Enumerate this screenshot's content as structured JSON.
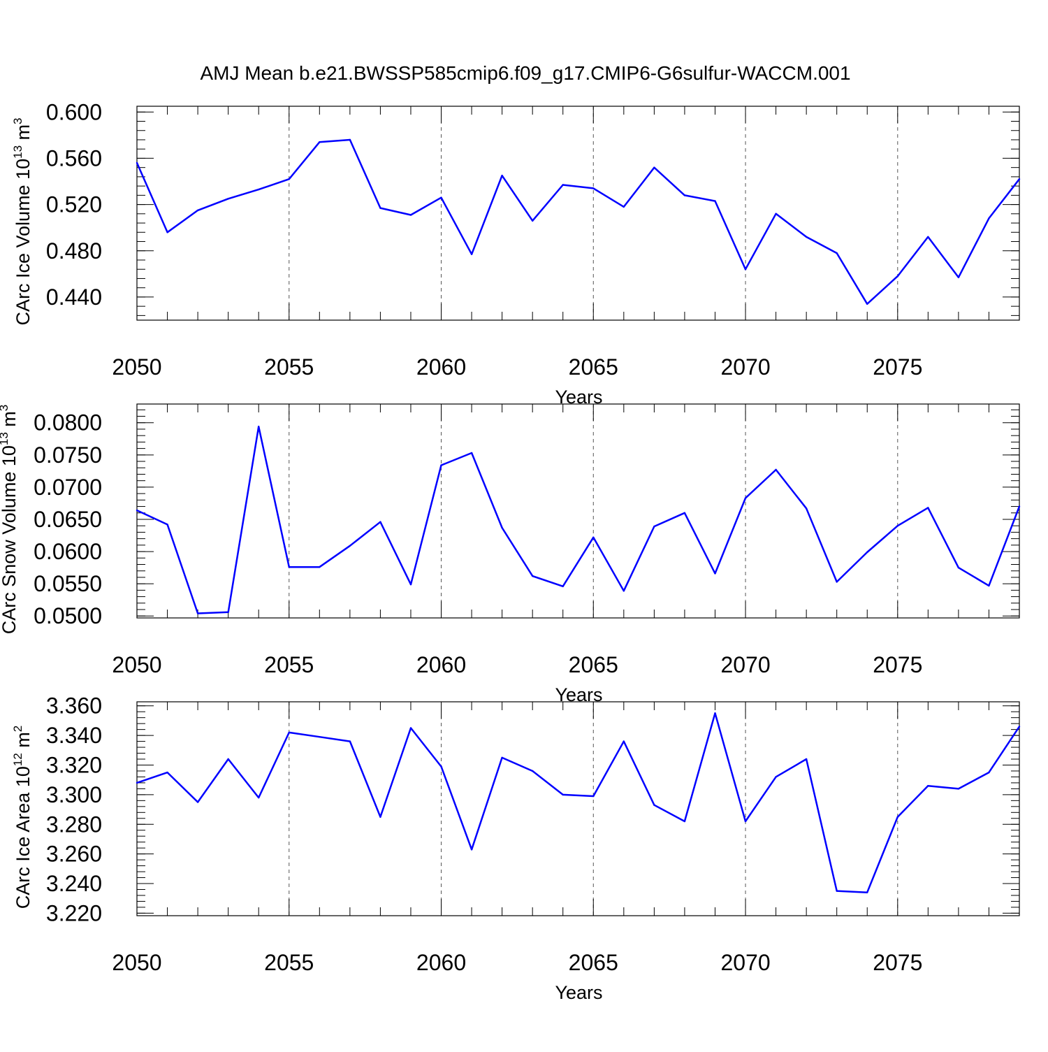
{
  "title": "AMJ Mean b.e21.BWSSP585cmip6.f09_g17.CMIP6-G6sulfur-WACCM.001",
  "colors": {
    "line": "#0000ff",
    "axis": "#000000",
    "grid": "#555555"
  },
  "chart_data": [
    {
      "type": "line",
      "ylabel_main": "CArc Ice Volume 10",
      "ylabel_sup": "13",
      "ylabel_unit": " m",
      "ylabel_unit_sup": "3",
      "xlabel": "Years",
      "xlim": [
        2050,
        2079
      ],
      "ylim": [
        0.42,
        0.605
      ],
      "yticks": [
        0.44,
        0.48,
        0.52,
        0.56,
        0.6
      ],
      "ytick_labels": [
        "0.440",
        "0.480",
        "0.520",
        "0.560",
        "0.600"
      ],
      "ystep_minor": 0.008,
      "xticks": [
        2050,
        2055,
        2060,
        2065,
        2070,
        2075
      ],
      "xtick_labels": [
        "2050",
        "2055",
        "2060",
        "2065",
        "2070",
        "2075"
      ],
      "vertical_grid": [
        2055,
        2060,
        2065,
        2070,
        2075
      ],
      "x": [
        2050,
        2051,
        2052,
        2053,
        2054,
        2055,
        2056,
        2057,
        2058,
        2059,
        2060,
        2061,
        2062,
        2063,
        2064,
        2065,
        2066,
        2067,
        2068,
        2069,
        2070,
        2071,
        2072,
        2073,
        2074,
        2075,
        2076,
        2077,
        2078,
        2079
      ],
      "y": [
        0.556,
        0.496,
        0.515,
        0.525,
        0.533,
        0.542,
        0.574,
        0.576,
        0.517,
        0.511,
        0.526,
        0.477,
        0.545,
        0.506,
        0.537,
        0.534,
        0.518,
        0.552,
        0.528,
        0.523,
        0.464,
        0.512,
        0.492,
        0.478,
        0.434,
        0.458,
        0.492,
        0.457,
        0.508,
        0.542
      ]
    },
    {
      "type": "line",
      "ylabel_main": "CArc Snow Volume 10",
      "ylabel_sup": "13",
      "ylabel_unit": " m",
      "ylabel_unit_sup": "3",
      "xlabel": "Years",
      "xlim": [
        2050,
        2079
      ],
      "ylim": [
        0.0497,
        0.0829
      ],
      "yticks": [
        0.05,
        0.055,
        0.06,
        0.065,
        0.07,
        0.075,
        0.08
      ],
      "ytick_labels": [
        "0.0500",
        "0.0550",
        "0.0600",
        "0.0650",
        "0.0700",
        "0.0750",
        "0.0800"
      ],
      "ystep_minor": 0.001,
      "xticks": [
        2050,
        2055,
        2060,
        2065,
        2070,
        2075
      ],
      "xtick_labels": [
        "2050",
        "2055",
        "2060",
        "2065",
        "2070",
        "2075"
      ],
      "vertical_grid": [
        2055,
        2060,
        2065,
        2070,
        2075
      ],
      "x": [
        2050,
        2051,
        2052,
        2053,
        2054,
        2055,
        2056,
        2057,
        2058,
        2059,
        2060,
        2061,
        2062,
        2063,
        2064,
        2065,
        2066,
        2067,
        2068,
        2069,
        2070,
        2071,
        2072,
        2073,
        2074,
        2075,
        2076,
        2077,
        2078,
        2079
      ],
      "y": [
        0.0664,
        0.0642,
        0.0504,
        0.0506,
        0.0794,
        0.0576,
        0.0576,
        0.0609,
        0.0646,
        0.0549,
        0.0734,
        0.0753,
        0.0637,
        0.0562,
        0.0546,
        0.0622,
        0.0539,
        0.0639,
        0.066,
        0.0566,
        0.0683,
        0.0727,
        0.0667,
        0.0553,
        0.0599,
        0.064,
        0.0668,
        0.0575,
        0.0547,
        0.067
      ]
    },
    {
      "type": "line",
      "ylabel_main": "CArc Ice Area 10",
      "ylabel_sup": "12",
      "ylabel_unit": " m",
      "ylabel_unit_sup": "2",
      "xlabel": "Years",
      "xlim": [
        2050,
        2079
      ],
      "ylim": [
        3.2183,
        3.3627
      ],
      "yticks": [
        3.22,
        3.24,
        3.26,
        3.28,
        3.3,
        3.32,
        3.34,
        3.36
      ],
      "ytick_labels": [
        "3.220",
        "3.240",
        "3.260",
        "3.280",
        "3.300",
        "3.320",
        "3.340",
        "3.360"
      ],
      "ystep_minor": 0.004,
      "xticks": [
        2050,
        2055,
        2060,
        2065,
        2070,
        2075
      ],
      "xtick_labels": [
        "2050",
        "2055",
        "2060",
        "2065",
        "2070",
        "2075"
      ],
      "vertical_grid": [
        2055,
        2060,
        2065,
        2070,
        2075
      ],
      "x": [
        2050,
        2051,
        2052,
        2053,
        2054,
        2055,
        2056,
        2057,
        2058,
        2059,
        2060,
        2061,
        2062,
        2063,
        2064,
        2065,
        2066,
        2067,
        2068,
        2069,
        2070,
        2071,
        2072,
        2073,
        2074,
        2075,
        2076,
        2077,
        2078,
        2079
      ],
      "y": [
        3.308,
        3.315,
        3.295,
        3.324,
        3.298,
        3.342,
        3.339,
        3.336,
        3.285,
        3.345,
        3.319,
        3.263,
        3.325,
        3.316,
        3.3,
        3.299,
        3.336,
        3.293,
        3.282,
        3.355,
        3.282,
        3.312,
        3.324,
        3.235,
        3.234,
        3.285,
        3.306,
        3.304,
        3.315,
        3.346
      ]
    }
  ]
}
